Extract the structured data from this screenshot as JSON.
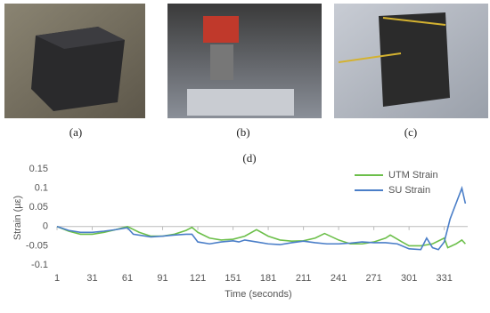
{
  "figure": {
    "photo_labels": [
      "(a)",
      "(b)",
      "(c)"
    ]
  },
  "chart_data": {
    "type": "line",
    "title": "(d)",
    "x_label": "Time (seconds)",
    "y_label": "Strain (µε)",
    "xlim": [
      1,
      351
    ],
    "xticks": [
      1,
      31,
      61,
      91,
      121,
      151,
      181,
      211,
      241,
      271,
      301,
      331
    ],
    "ylim": [
      -0.1,
      0.15
    ],
    "yticks": [
      -0.1,
      -0.05,
      0,
      0.05,
      0.1,
      0.15
    ],
    "grid": false,
    "legend": "upper right",
    "series": [
      {
        "name": "UTM Strain",
        "color": "#6cbf4a",
        "x": [
          1,
          11,
          21,
          31,
          41,
          51,
          61,
          71,
          81,
          91,
          101,
          111,
          116,
          121,
          131,
          141,
          151,
          161,
          171,
          181,
          191,
          201,
          211,
          221,
          229,
          241,
          251,
          261,
          271,
          281,
          285,
          295,
          301,
          311,
          321,
          331,
          334,
          341,
          346,
          349
        ],
        "values": [
          0,
          -0.012,
          -0.02,
          -0.02,
          -0.015,
          -0.008,
          0,
          -0.015,
          -0.025,
          -0.025,
          -0.02,
          -0.01,
          -0.002,
          -0.015,
          -0.03,
          -0.035,
          -0.033,
          -0.025,
          -0.008,
          -0.025,
          -0.035,
          -0.038,
          -0.037,
          -0.03,
          -0.018,
          -0.035,
          -0.045,
          -0.045,
          -0.04,
          -0.03,
          -0.022,
          -0.04,
          -0.05,
          -0.05,
          -0.045,
          -0.03,
          -0.055,
          -0.045,
          -0.035,
          -0.045
        ]
      },
      {
        "name": "SU Strain",
        "color": "#4a7ec8",
        "x": [
          1,
          11,
          21,
          31,
          41,
          51,
          61,
          66,
          81,
          91,
          101,
          111,
          116,
          121,
          131,
          141,
          151,
          156,
          161,
          171,
          181,
          191,
          201,
          211,
          221,
          231,
          241,
          251,
          261,
          271,
          281,
          291,
          301,
          311,
          316,
          321,
          326,
          331,
          336,
          341,
          346,
          349
        ],
        "values": [
          0,
          -0.01,
          -0.015,
          -0.015,
          -0.012,
          -0.008,
          -0.003,
          -0.02,
          -0.027,
          -0.025,
          -0.022,
          -0.02,
          -0.02,
          -0.04,
          -0.045,
          -0.04,
          -0.037,
          -0.04,
          -0.035,
          -0.04,
          -0.045,
          -0.047,
          -0.042,
          -0.038,
          -0.042,
          -0.045,
          -0.045,
          -0.043,
          -0.04,
          -0.042,
          -0.042,
          -0.045,
          -0.058,
          -0.06,
          -0.03,
          -0.055,
          -0.06,
          -0.04,
          0.02,
          0.06,
          0.1,
          0.06
        ]
      }
    ]
  }
}
